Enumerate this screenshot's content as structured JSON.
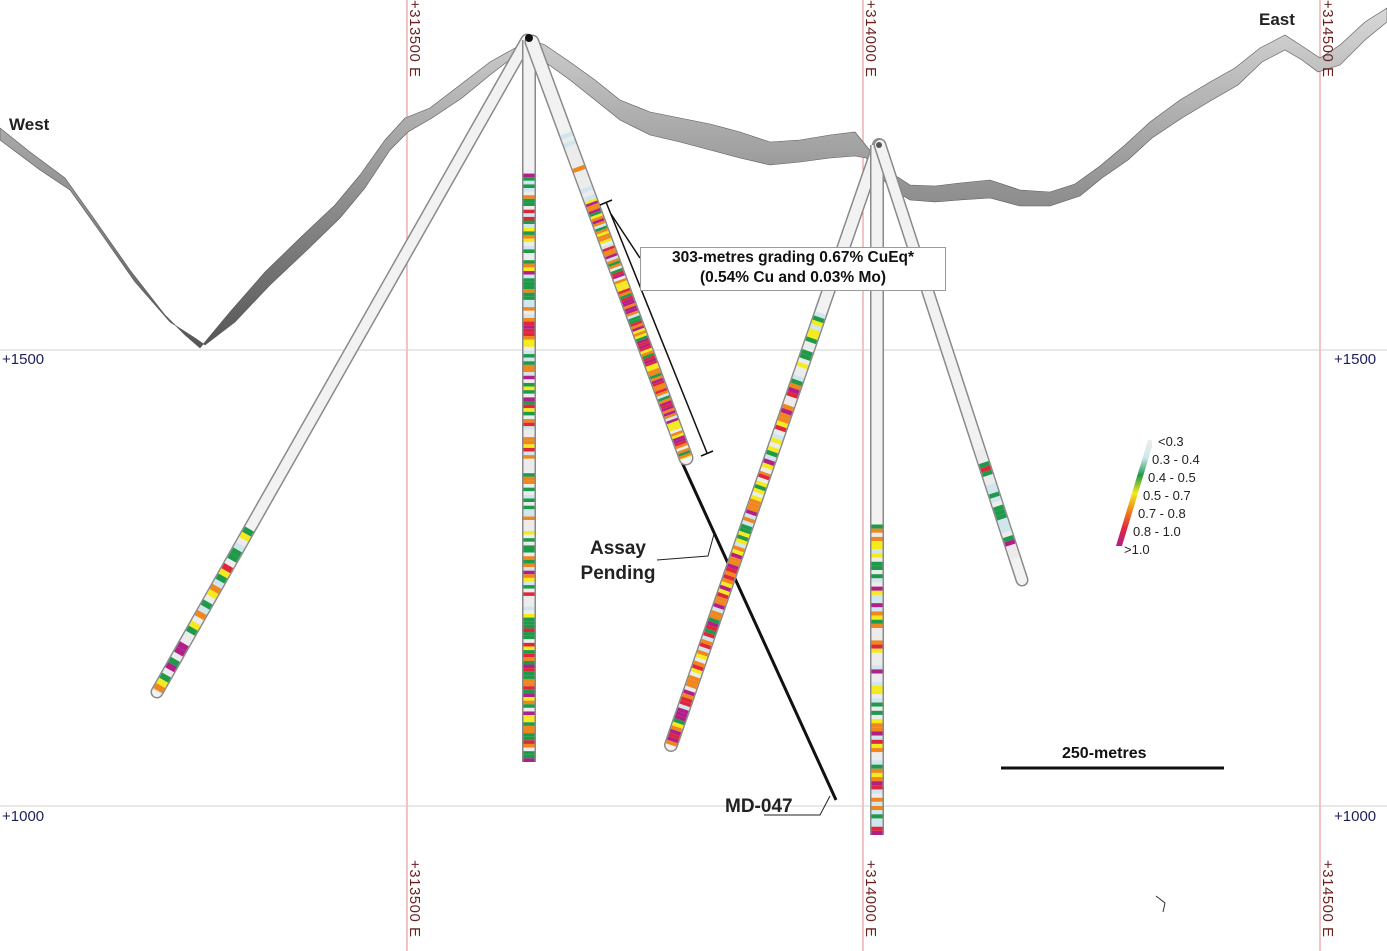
{
  "labels": {
    "west": "West",
    "east": "East",
    "elev_upper_left": "+1500",
    "elev_upper_right": "+1500",
    "elev_lower_left": "+1000",
    "elev_lower_right": "+1000",
    "easting_1_top": "+313500 E",
    "easting_1_bottom": "+313500 E",
    "easting_2_top": "+314000 E",
    "easting_2_bottom": "+314000 E",
    "easting_3_top": "+314500 E",
    "easting_3_bottom": "+314500 E"
  },
  "callout": {
    "line1": "303-metres grading 0.67% CuEq*",
    "line2": "(0.54% Cu and 0.03% Mo)"
  },
  "assay": {
    "line1": "Assay",
    "line2": "Pending"
  },
  "hole_id": "MD-047",
  "scale_bar": {
    "label": "250-metres"
  },
  "legend": {
    "items": [
      {
        "label": "<0.3",
        "color": "#ececec"
      },
      {
        "label": "0.3 - 0.4",
        "color": "#cfe6ee"
      },
      {
        "label": "0.4 - 0.5",
        "color": "#1f9a4a"
      },
      {
        "label": "0.5 - 0.7",
        "color": "#f4ea1c"
      },
      {
        "label": "0.7 - 0.8",
        "color": "#f0861c"
      },
      {
        "label": "0.8 - 1.0",
        "color": "#e0263b"
      },
      {
        "label": ">1.0",
        "color": "#b21f88"
      }
    ]
  },
  "colors": {
    "terrain": "#7a7a7a",
    "grid_vertical": "#e06a6a",
    "grid_horizontal": "#cfcfcf",
    "hole_barren": "#dcdcdc",
    "drill_trace": "#111111"
  }
}
